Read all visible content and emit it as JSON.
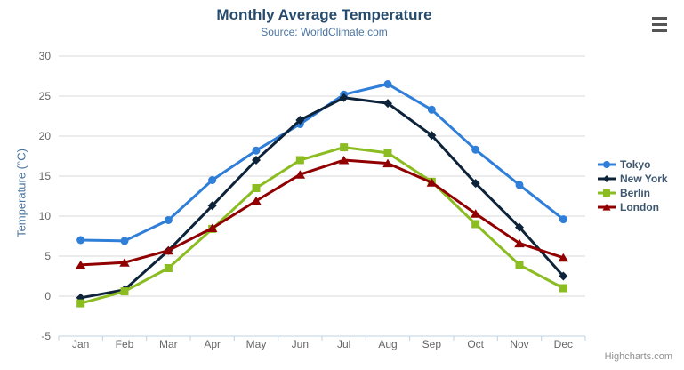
{
  "chart_data": {
    "type": "line",
    "title": "Monthly Average Temperature",
    "subtitle": "Source: WorldClimate.com",
    "categories": [
      "Jan",
      "Feb",
      "Mar",
      "Apr",
      "May",
      "Jun",
      "Jul",
      "Aug",
      "Sep",
      "Oct",
      "Nov",
      "Dec"
    ],
    "xlabel": "",
    "ylabel": "Temperature (°C)",
    "ylim": [
      -5,
      30
    ],
    "y_ticks": [
      -5,
      0,
      5,
      10,
      15,
      20,
      25,
      30
    ],
    "grid": true,
    "legend_position": "right",
    "series": [
      {
        "name": "Tokyo",
        "color": "#2f7ed8",
        "marker": "circle",
        "values": [
          7.0,
          6.9,
          9.5,
          14.5,
          18.2,
          21.5,
          25.2,
          26.5,
          23.3,
          18.3,
          13.9,
          9.6
        ]
      },
      {
        "name": "New York",
        "color": "#0d233a",
        "marker": "diamond",
        "values": [
          -0.2,
          0.8,
          5.7,
          11.3,
          17.0,
          22.0,
          24.8,
          24.1,
          20.1,
          14.1,
          8.6,
          2.5
        ]
      },
      {
        "name": "Berlin",
        "color": "#8bbc21",
        "marker": "square",
        "values": [
          -0.9,
          0.6,
          3.5,
          8.4,
          13.5,
          17.0,
          18.6,
          17.9,
          14.3,
          9.0,
          3.9,
          1.0
        ]
      },
      {
        "name": "London",
        "color": "#910000",
        "marker": "triangle",
        "values": [
          3.9,
          4.2,
          5.7,
          8.5,
          11.9,
          15.2,
          17.0,
          16.6,
          14.2,
          10.3,
          6.6,
          4.8
        ]
      }
    ],
    "theme": {
      "title_color": "#274b6d",
      "subtitle_color": "#4d759e",
      "axis_title_color": "#4d759e",
      "axis_label_color": "#666666",
      "grid_color": "#d8d8d8",
      "axis_line_color": "#c0d0e0",
      "legend_text_color": "#3e576f",
      "credits_color": "#909090",
      "menu_icon_color": "#555555"
    },
    "credits": "Highcharts.com"
  },
  "icons": {
    "context_menu": "hamburger-icon"
  }
}
